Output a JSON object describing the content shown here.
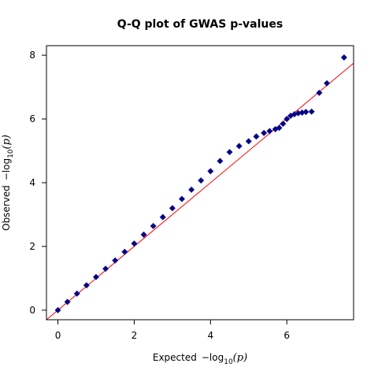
{
  "chart_data": {
    "type": "scatter",
    "title": "Q-Q plot of GWAS p-values",
    "xlabel": {
      "prefix": "Expected",
      "expr": "−log",
      "sub": "10",
      "arg": "(p)"
    },
    "ylabel": {
      "prefix": "Observed",
      "expr": "−log",
      "sub": "10",
      "arg": "(p)"
    },
    "xlim": [
      -0.3,
      7.75
    ],
    "ylim": [
      -0.3,
      8.3
    ],
    "x_ticks": [
      0,
      2,
      4,
      6
    ],
    "y_ticks": [
      0,
      2,
      4,
      6,
      8
    ],
    "grid": false,
    "reference_line": {
      "intercept": 0,
      "slope": 1,
      "color": "#ff0000"
    },
    "series": [
      {
        "marker": "diamond",
        "color": "#00008b",
        "x": [
          0.0,
          0.25,
          0.5,
          0.75,
          1.0,
          1.25,
          1.5,
          1.75,
          2.0,
          2.25,
          2.5,
          2.75,
          3.0,
          3.25,
          3.5,
          3.75,
          4.0,
          4.25,
          4.5,
          4.75,
          5.0,
          5.2,
          5.4,
          5.55,
          5.7,
          5.8,
          5.9,
          6.0,
          6.1,
          6.2,
          6.3,
          6.4,
          6.5,
          6.65,
          6.85,
          7.05,
          7.5
        ],
        "y": [
          0.0,
          0.26,
          0.52,
          0.78,
          1.04,
          1.3,
          1.56,
          1.83,
          2.09,
          2.37,
          2.64,
          2.92,
          3.2,
          3.49,
          3.78,
          4.07,
          4.36,
          4.68,
          4.96,
          5.15,
          5.3,
          5.45,
          5.56,
          5.62,
          5.68,
          5.72,
          5.85,
          6.0,
          6.1,
          6.15,
          6.18,
          6.2,
          6.22,
          6.23,
          6.82,
          7.12,
          7.93
        ]
      }
    ]
  }
}
